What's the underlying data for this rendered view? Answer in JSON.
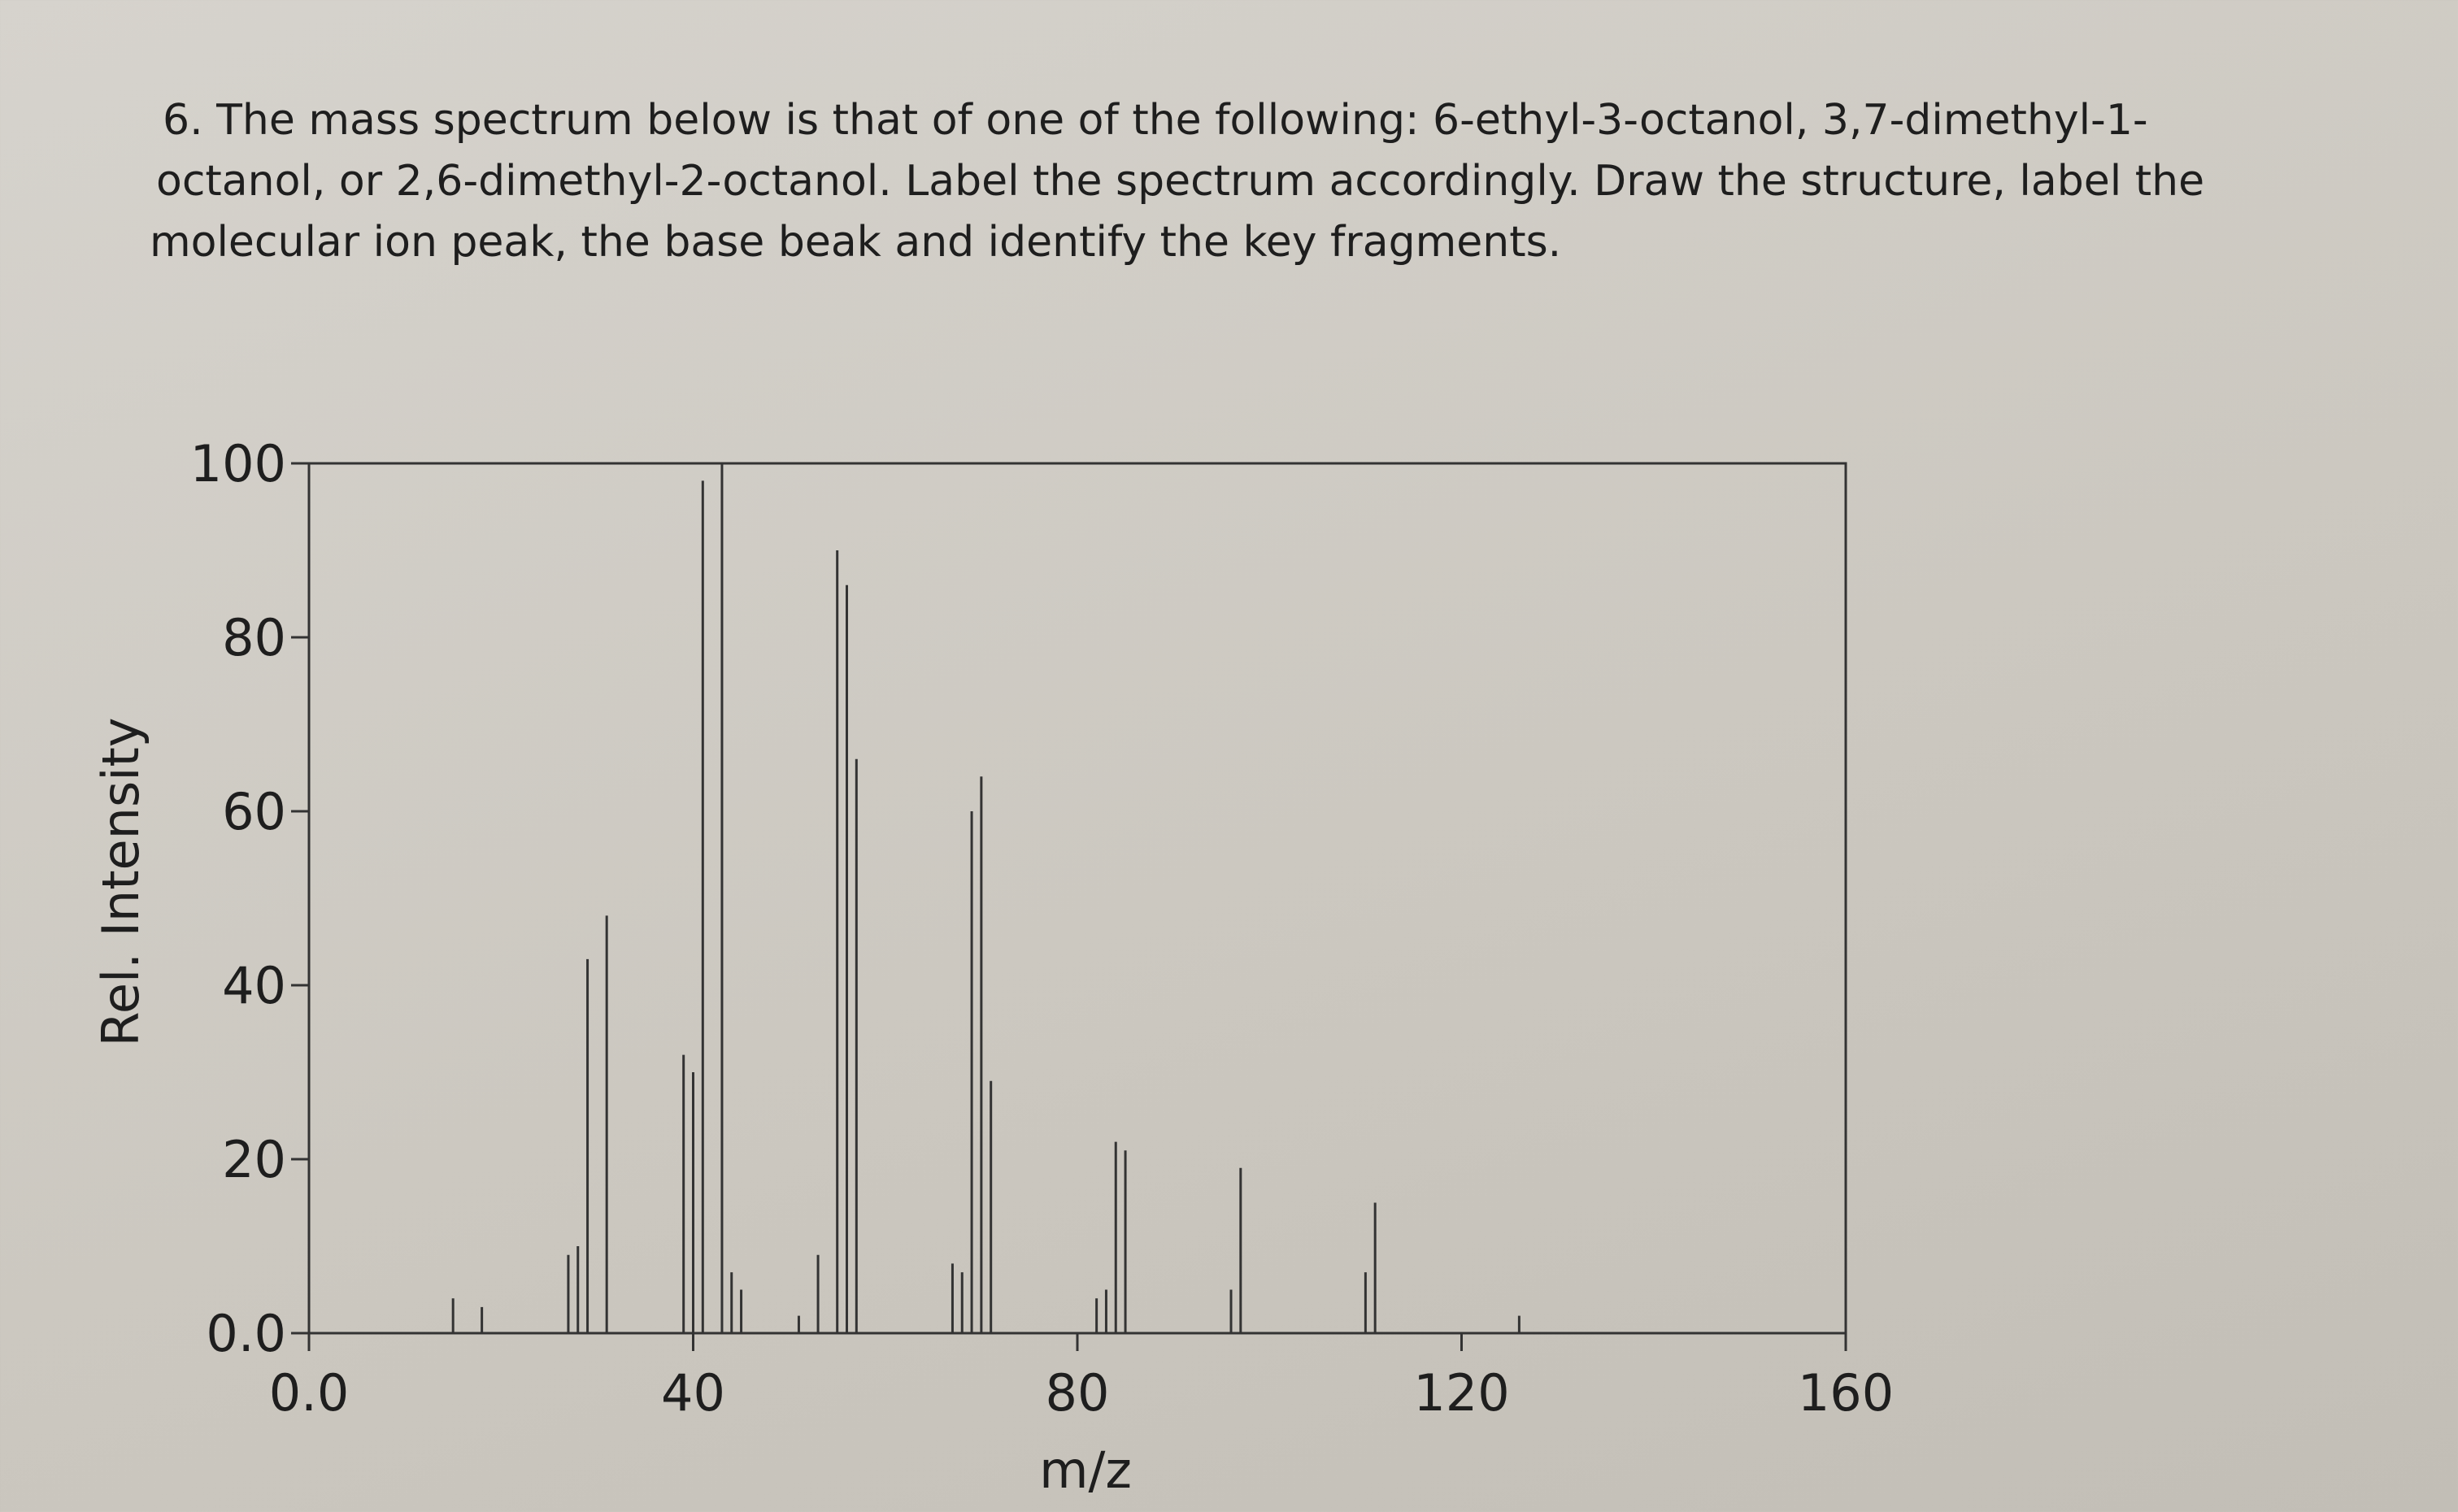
{
  "question": [
    "6. The mass spectrum below is that of one of the following: 6-ethyl-3-octanol, 3,7-dimethyl-1-",
    "octanol, or 2,6-dimethyl-2-octanol.  Label the spectrum accordingly. Draw the structure, label the",
    "molecular ion peak, the base beak and identify the key fragments."
  ],
  "chart_data": {
    "type": "stem",
    "x_label": "m/z",
    "y_label": "Rel. Intensity",
    "color": "#333333",
    "x": [
      15,
      18,
      27,
      28,
      29,
      31,
      39,
      40,
      41,
      43,
      44,
      45,
      51,
      53,
      55,
      56,
      57,
      67,
      68,
      69,
      70,
      71,
      82,
      83,
      84,
      85,
      96,
      97,
      110,
      111,
      126
    ],
    "values": [
      4,
      3,
      9,
      10,
      43,
      48,
      32,
      30,
      98,
      100,
      7,
      5,
      2,
      9,
      90,
      86,
      66,
      8,
      7,
      60,
      64,
      29,
      4,
      5,
      22,
      21,
      5,
      19,
      7,
      15,
      2
    ],
    "xlim": [
      0,
      160
    ],
    "xticks": [
      {
        "value": 0,
        "label": "0.0"
      },
      40,
      80,
      120,
      160
    ],
    "ylim": [
      0,
      100
    ],
    "yticks": [
      {
        "value": 0,
        "label": "0.0"
      },
      20,
      40,
      60,
      80,
      100
    ]
  }
}
